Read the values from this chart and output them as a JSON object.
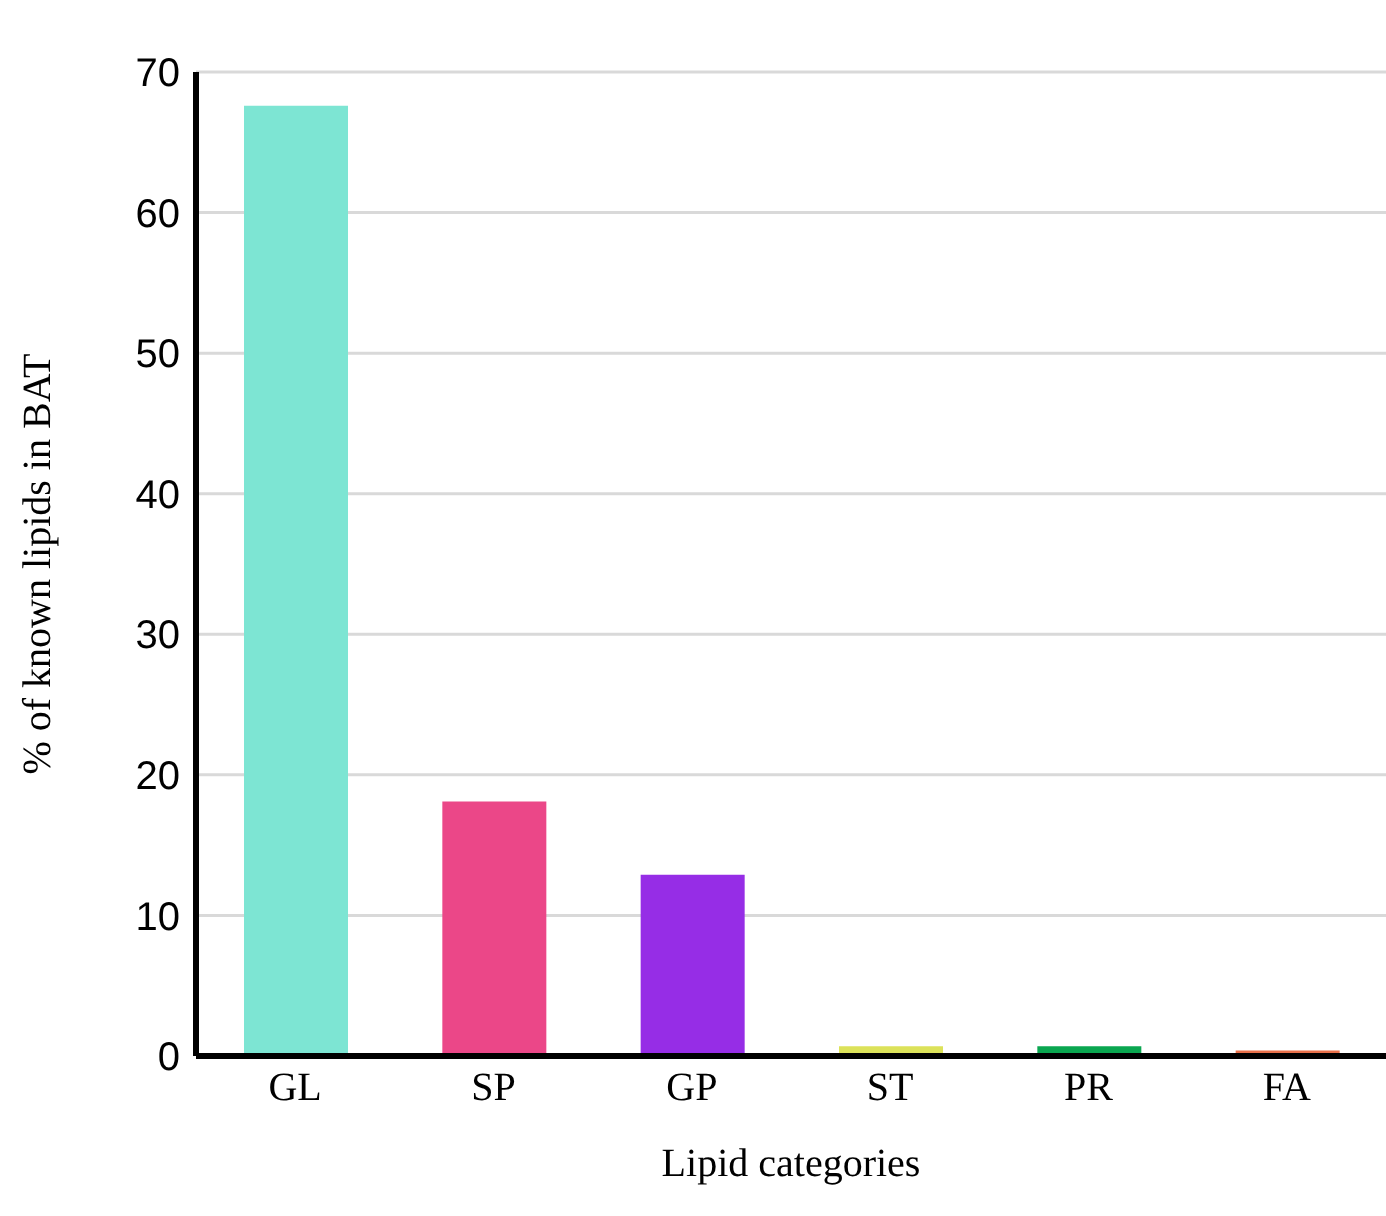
{
  "chart_data": {
    "type": "bar",
    "xlabel": "Lipid categories",
    "ylabel": "% of known lipids in BAT",
    "categories": [
      "GL",
      "SP",
      "GP",
      "ST",
      "PR",
      "FA"
    ],
    "values": [
      67.6,
      18.1,
      12.9,
      0.7,
      0.7,
      0.4
    ],
    "colors": [
      "#7de5d3",
      "#eb4788",
      "#962de6",
      "#dce25a",
      "#0aa650",
      "#e9704a"
    ],
    "ylim": [
      0,
      70
    ],
    "yticks": [
      0,
      10,
      20,
      30,
      40,
      50,
      60,
      70
    ],
    "grid": "y",
    "legend": false
  }
}
